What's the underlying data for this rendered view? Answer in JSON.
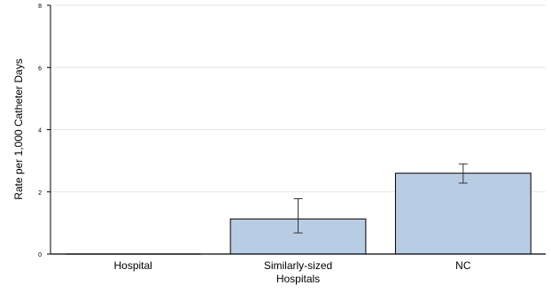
{
  "chart_data": {
    "type": "bar",
    "categories": [
      "Hospital",
      "Similarly-sized Hospitals",
      "NC"
    ],
    "category_lines": [
      [
        "Hospital"
      ],
      [
        "Similarly-sized",
        "Hospitals"
      ],
      [
        "NC"
      ]
    ],
    "values": [
      0,
      1.13,
      2.6
    ],
    "error_bars": [
      null,
      {
        "low": 0.68,
        "high": 1.78
      },
      {
        "low": 2.28,
        "high": 2.9
      }
    ],
    "ylabel": "Rate per 1,000 Catheter Days",
    "xlabel": "",
    "ylim": [
      0,
      8
    ],
    "yticks": [
      0,
      2,
      4,
      6,
      8
    ],
    "grid": true,
    "bar_fill": "#b8cce4",
    "bar_stroke": "#000000",
    "grid_color": "#e6e6e6"
  }
}
